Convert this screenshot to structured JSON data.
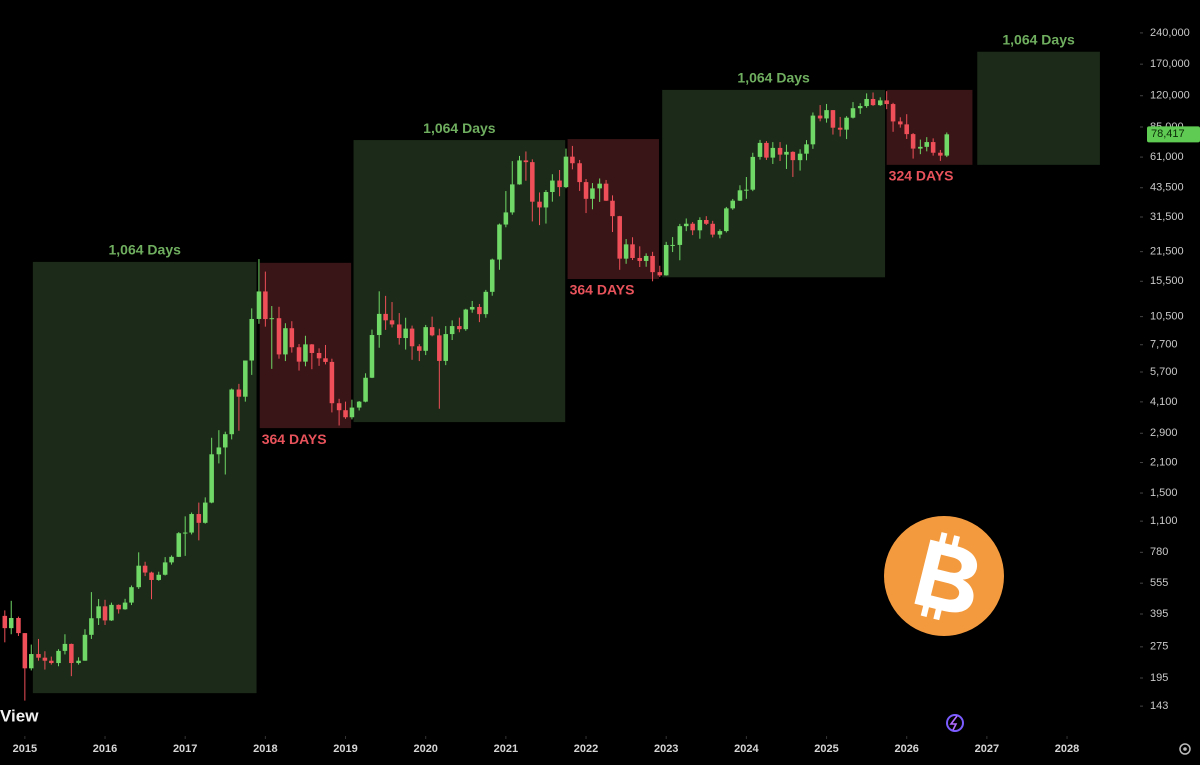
{
  "chart_data": {
    "type": "candlestick",
    "watermark": "View",
    "log_scale": true,
    "up_color": "#6fd866",
    "down_color": "#ee4f58",
    "xlim": [
      2014.69,
      2028.91
    ],
    "xticks": [
      2015,
      2016,
      2017,
      2018,
      2019,
      2020,
      2021,
      2022,
      2023,
      2024,
      2025,
      2026,
      2027,
      2028
    ],
    "ylim": [
      104,
      345000
    ],
    "yticks": [
      {
        "value": 240000,
        "label": "240,000"
      },
      {
        "value": 170000,
        "label": "170,000"
      },
      {
        "value": 120000,
        "label": "120,000"
      },
      {
        "value": 85000,
        "label": "85,000"
      },
      {
        "value": 61000,
        "label": "61,000"
      },
      {
        "value": 43500,
        "label": "43,500"
      },
      {
        "value": 31500,
        "label": "31,500"
      },
      {
        "value": 21500,
        "label": "21,500"
      },
      {
        "value": 15500,
        "label": "15,500"
      },
      {
        "value": 10500,
        "label": "10,500"
      },
      {
        "value": 7700,
        "label": "7,700"
      },
      {
        "value": 5700,
        "label": "5,700"
      },
      {
        "value": 4100,
        "label": "4,100"
      },
      {
        "value": 2900,
        "label": "2,900"
      },
      {
        "value": 2100,
        "label": "2,100"
      },
      {
        "value": 1500,
        "label": "1,500"
      },
      {
        "value": 1100,
        "label": "1,100"
      },
      780,
      555,
      395,
      275,
      195,
      143
    ],
    "last_price": {
      "value": 78417,
      "label": "78,417"
    },
    "last_price_color": "#5fcb52",
    "ranges": [
      {
        "x": [
          2015.1,
          2017.89
        ],
        "y": [
          165,
          19200
        ],
        "label": "1,064 Days",
        "fill": "#1b2a19",
        "text_color": "#6fae5f",
        "label_position": "top"
      },
      {
        "x": [
          2017.93,
          2019.07
        ],
        "y": [
          3070,
          19000
        ],
        "label": "364 DAYS",
        "fill": "#3a1517",
        "text_color": "#e8535b",
        "label_position": "bottom"
      },
      {
        "x": [
          2019.1,
          2021.74
        ],
        "y": [
          3280,
          73600
        ],
        "label": "1,064 Days",
        "fill": "#1b2a19",
        "text_color": "#6fae5f",
        "label_position": "top"
      },
      {
        "x": [
          2021.77,
          2022.91
        ],
        "y": [
          15900,
          74400
        ],
        "label": "364 DAYS",
        "fill": "#3a1517",
        "text_color": "#e8535b",
        "label_position": "bottom"
      },
      {
        "x": [
          2022.95,
          2025.73
        ],
        "y": [
          16200,
          128000
        ],
        "label": "1,064 Days",
        "fill": "#1b2a19",
        "text_color": "#6fae5f",
        "label_position": "top"
      },
      {
        "x": [
          2025.75,
          2026.82
        ],
        "y": [
          56000,
          128000
        ],
        "label": "324 DAYS",
        "fill": "#3a1517",
        "text_color": "#e8535b",
        "label_position": "bottom"
      },
      {
        "x": [
          2026.88,
          2028.41
        ],
        "y": [
          56000,
          195000
        ],
        "label": "1,064 Days",
        "fill": "#1b2a19",
        "text_color": "#6fae5f",
        "label_position": "top"
      }
    ],
    "x": [
      2014.75,
      2014.83,
      2014.92,
      2015,
      2015.08,
      2015.17,
      2015.25,
      2015.33,
      2015.42,
      2015.5,
      2015.58,
      2015.67,
      2015.75,
      2015.83,
      2015.92,
      2016,
      2016.08,
      2016.17,
      2016.25,
      2016.33,
      2016.42,
      2016.5,
      2016.58,
      2016.67,
      2016.75,
      2016.83,
      2016.92,
      2017,
      2017.08,
      2017.17,
      2017.25,
      2017.33,
      2017.42,
      2017.5,
      2017.58,
      2017.67,
      2017.75,
      2017.83,
      2017.92,
      2018,
      2018.08,
      2018.17,
      2018.25,
      2018.33,
      2018.42,
      2018.5,
      2018.58,
      2018.67,
      2018.75,
      2018.83,
      2018.92,
      2019,
      2019.08,
      2019.17,
      2019.25,
      2019.33,
      2019.42,
      2019.5,
      2019.58,
      2019.67,
      2019.75,
      2019.83,
      2019.92,
      2020,
      2020.08,
      2020.17,
      2020.25,
      2020.33,
      2020.42,
      2020.5,
      2020.58,
      2020.67,
      2020.75,
      2020.83,
      2020.92,
      2021,
      2021.08,
      2021.17,
      2021.25,
      2021.33,
      2021.42,
      2021.5,
      2021.58,
      2021.67,
      2021.75,
      2021.83,
      2021.92,
      2022,
      2022.08,
      2022.17,
      2022.25,
      2022.33,
      2022.42,
      2022.5,
      2022.58,
      2022.67,
      2022.75,
      2022.83,
      2022.92,
      2023,
      2023.08,
      2023.17,
      2023.25,
      2023.33,
      2023.42,
      2023.5,
      2023.58,
      2023.67,
      2023.75,
      2023.83,
      2023.92,
      2024,
      2024.08,
      2024.17,
      2024.25,
      2024.33,
      2024.42,
      2024.5,
      2024.58,
      2024.67,
      2024.75,
      2024.83,
      2024.92,
      2025,
      2025.08,
      2025.17,
      2025.25,
      2025.33,
      2025.42,
      2025.5,
      2025.58,
      2025.67,
      2025.75,
      2025.83,
      2025.92,
      2026,
      2026.08,
      2026.17,
      2026.25,
      2026.33,
      2026.42,
      2026.5
    ],
    "open": [
      387,
      338,
      378,
      320,
      217,
      254,
      244,
      236,
      230,
      263,
      284,
      230,
      236,
      314,
      377,
      430,
      368,
      437,
      416,
      448,
      531,
      673,
      624,
      575,
      609,
      698,
      742,
      963,
      970,
      1190,
      1080,
      1350,
      2300,
      2480,
      2870,
      4700,
      4340,
      6470,
      10230,
      13860,
      10220,
      10320,
      6920,
      9240,
      7490,
      6390,
      7730,
      7030,
      6630,
      6370,
      4040,
      3740,
      3460,
      3850,
      4110,
      5350,
      8570,
      10820,
      10080,
      9630,
      8290,
      9200,
      7570,
      7200,
      9350,
      8540,
      6440,
      8660,
      9460,
      9140,
      11350,
      11680,
      10790,
      13800,
      19700,
      28990,
      33140,
      45140,
      58800,
      57700,
      37300,
      35000,
      41500,
      47100,
      43800,
      61300,
      57000,
      46300,
      38500,
      43200,
      45500,
      37700,
      31800,
      19900,
      23300,
      20050,
      19400,
      20500,
      17150,
      16550,
      23140,
      23150,
      28480,
      29250,
      27200,
      30480,
      29230,
      25940,
      26970,
      34650,
      37720,
      42280,
      42580,
      61130,
      71330,
      60640,
      67500,
      62680,
      64630,
      58980,
      63330,
      70220,
      96400,
      93430,
      102400,
      84350,
      82550,
      94200,
      104600,
      107100,
      115800,
      108200,
      114000,
      109500,
      90400,
      87500,
      78600,
      67000,
      68300,
      72000,
      64000,
      62000
    ],
    "high": [
      411,
      457,
      384,
      320,
      282,
      300,
      262,
      247,
      268,
      316,
      285,
      245,
      334,
      503,
      466,
      462,
      448,
      439,
      467,
      541,
      780,
      703,
      630,
      630,
      740,
      754,
      975,
      1160,
      1210,
      1350,
      1430,
      2760,
      3000,
      2950,
      4750,
      5000,
      6470,
      11500,
      19800,
      17250,
      11800,
      11700,
      9760,
      9980,
      7760,
      8500,
      7760,
      7400,
      7680,
      6600,
      4240,
      4110,
      4200,
      4140,
      5620,
      9100,
      13880,
      13200,
      12330,
      10920,
      10370,
      9510,
      7750,
      9580,
      10500,
      9190,
      9460,
      10070,
      10380,
      11450,
      12480,
      12070,
      14100,
      19900,
      29300,
      41950,
      58350,
      61790,
      64900,
      59500,
      41300,
      42400,
      50500,
      52900,
      67000,
      69000,
      59100,
      47900,
      45800,
      48200,
      47400,
      40000,
      31900,
      24700,
      25200,
      22800,
      21100,
      21450,
      18400,
      23950,
      25250,
      29200,
      31000,
      29820,
      31400,
      31800,
      30200,
      27500,
      35200,
      38450,
      44700,
      48970,
      64000,
      73800,
      72800,
      71950,
      71980,
      70000,
      65000,
      66500,
      73600,
      99800,
      108300,
      109600,
      102500,
      95000,
      95800,
      111900,
      110500,
      123200,
      124400,
      117900,
      126200,
      111000,
      94600,
      97900,
      79500,
      74000,
      76000,
      75000,
      66000,
      80000
    ],
    "low": [
      289,
      316,
      310,
      152,
      212,
      236,
      214,
      226,
      222,
      253,
      199,
      226,
      236,
      300,
      350,
      350,
      366,
      397,
      414,
      436,
      521,
      600,
      465,
      570,
      604,
      681,
      741,
      750,
      950,
      890,
      1070,
      1340,
      2080,
      1840,
      2710,
      2980,
      4110,
      5520,
      9700,
      9400,
      5900,
      6600,
      6430,
      7060,
      5790,
      6070,
      5880,
      6100,
      6200,
      3650,
      3160,
      3400,
      3380,
      3730,
      4080,
      5330,
      7450,
      9070,
      9320,
      7710,
      7300,
      6520,
      6430,
      6870,
      8450,
      3800,
      6150,
      8110,
      8830,
      8980,
      10960,
      9880,
      10370,
      13220,
      17600,
      28130,
      32300,
      44970,
      47000,
      30000,
      28800,
      29300,
      37300,
      39600,
      43300,
      53300,
      42000,
      32900,
      34300,
      37200,
      37600,
      26700,
      17600,
      18800,
      19600,
      18150,
      18200,
      15500,
      16250,
      16500,
      21400,
      19550,
      26950,
      25800,
      24800,
      28850,
      25150,
      24900,
      26550,
      34100,
      37600,
      38500,
      41900,
      59300,
      59100,
      56550,
      58400,
      53500,
      49000,
      52550,
      58900,
      66800,
      90500,
      89200,
      78200,
      76600,
      74400,
      93400,
      98200,
      105100,
      107300,
      107300,
      103500,
      80600,
      84400,
      74500,
      60000,
      63000,
      65000,
      62000,
      58500,
      61000
    ],
    "close": [
      338,
      378,
      320,
      217,
      254,
      244,
      236,
      230,
      263,
      284,
      230,
      236,
      314,
      377,
      430,
      368,
      437,
      416,
      448,
      531,
      673,
      624,
      575,
      609,
      698,
      742,
      963,
      970,
      1190,
      1080,
      1350,
      2300,
      2480,
      2870,
      4700,
      4340,
      6470,
      10230,
      13860,
      10220,
      10320,
      6920,
      9240,
      7490,
      6390,
      7730,
      7030,
      6630,
      6370,
      4040,
      3740,
      3460,
      3850,
      4110,
      5350,
      8570,
      10820,
      10080,
      9630,
      8290,
      9200,
      7570,
      7200,
      9350,
      8540,
      6440,
      8660,
      9460,
      9140,
      11350,
      11680,
      10790,
      13800,
      19700,
      28990,
      33140,
      45140,
      58800,
      57700,
      37300,
      35000,
      41500,
      47100,
      43800,
      61300,
      57000,
      46300,
      38500,
      43200,
      45500,
      37700,
      31800,
      19900,
      23300,
      20050,
      19400,
      20500,
      17150,
      16550,
      23140,
      23150,
      28480,
      29250,
      27200,
      30480,
      29230,
      25940,
      26970,
      34650,
      37720,
      42280,
      42580,
      61130,
      71330,
      60640,
      67500,
      62680,
      64630,
      58980,
      63330,
      70220,
      96400,
      93430,
      102400,
      84350,
      82550,
      94200,
      104600,
      107100,
      115800,
      108200,
      114000,
      109500,
      90400,
      87500,
      78600,
      67000,
      68300,
      72000,
      64000,
      62000,
      78417
    ]
  }
}
